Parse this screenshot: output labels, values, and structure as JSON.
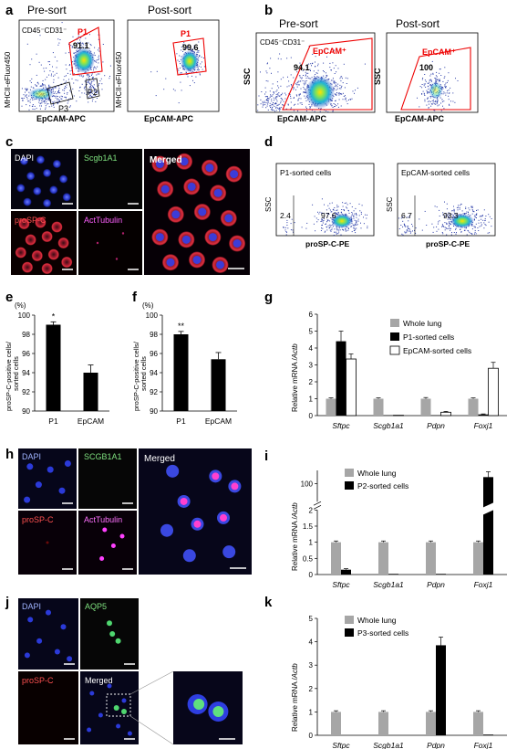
{
  "panels": {
    "a": {
      "letter": "a",
      "pre_title": "Pre-sort",
      "post_title": "Post-sort",
      "subset_label": "CD45⁻CD31⁻",
      "x_label": "EpCAM-APC",
      "y_label": "MHCII-eFluor450",
      "gate_p1": "P1",
      "gate_p2": "P2",
      "gate_p3": "P3",
      "pre_pct": "91.1",
      "post_pct": "99.6"
    },
    "b": {
      "letter": "b",
      "pre_title": "Pre-sort",
      "post_title": "Post-sort",
      "subset_label": "CD45⁻CD31⁻",
      "x_label": "EpCAM-APC",
      "y_label": "SSC",
      "gate": "EpCAM⁺",
      "pre_pct": "94.1",
      "post_pct": "100"
    },
    "c": {
      "letter": "c",
      "ch1": "DAPI",
      "ch2": "Scgb1A1",
      "ch3": "proSP-C",
      "ch4": "ActTubulin",
      "merged": "Merged"
    },
    "d": {
      "letter": "d",
      "left_title": "P1-sorted cells",
      "right_title": "EpCAM-sorted cells",
      "y_label": "SSC",
      "x_label": "proSP-C-PE",
      "left_neg": "2.4",
      "left_pos": "97.6",
      "right_neg": "6.7",
      "right_pos": "93.3"
    },
    "e": {
      "letter": "e"
    },
    "f": {
      "letter": "f"
    },
    "g": {
      "letter": "g"
    },
    "h": {
      "letter": "h",
      "ch1": "DAPI",
      "ch2": "SCGB1A1",
      "ch3": "proSP-C",
      "ch4": "ActTubulin",
      "merged": "Merged"
    },
    "i": {
      "letter": "i"
    },
    "j": {
      "letter": "j",
      "ch1": "DAPI",
      "ch2": "AQP5",
      "ch3": "proSP-C",
      "merged": "Merged"
    },
    "k": {
      "letter": "k"
    }
  },
  "chart_data": [
    {
      "id": "e",
      "type": "bar",
      "categories": [
        "P1",
        "EpCAM"
      ],
      "values": [
        99.0,
        94.0
      ],
      "errors": [
        0.3,
        0.8
      ],
      "significance": [
        "*",
        ""
      ],
      "ylabel": "proSP-C-positive cells/ sorted cells",
      "unit": "(%)",
      "ylim": [
        90,
        100
      ],
      "yticks": [
        90,
        92,
        94,
        96,
        98,
        100
      ]
    },
    {
      "id": "f",
      "type": "bar",
      "categories": [
        "P1",
        "EpCAM"
      ],
      "values": [
        98.0,
        95.4
      ],
      "errors": [
        0.3,
        0.7
      ],
      "significance": [
        "**",
        ""
      ],
      "ylabel": "proSP-C-positive cells/ sorted cells",
      "unit": "(%)",
      "ylim": [
        90,
        100
      ],
      "yticks": [
        90,
        92,
        94,
        96,
        98,
        100
      ]
    },
    {
      "id": "g",
      "type": "bar",
      "categories": [
        "Sftpc",
        "Scgb1a1",
        "Pdpn",
        "Foxj1"
      ],
      "series": [
        {
          "name": "Whole lung",
          "values": [
            1.0,
            1.0,
            1.0,
            1.0
          ],
          "errors": [
            0.05,
            0.05,
            0.07,
            0.05
          ],
          "color": "#a6a6a6"
        },
        {
          "name": "P1-sorted cells",
          "values": [
            4.4,
            0.02,
            0.02,
            0.07
          ],
          "errors": [
            0.6,
            0,
            0,
            0.03
          ],
          "color": "#000000"
        },
        {
          "name": "EpCAM-sorted cells",
          "values": [
            3.35,
            0.02,
            0.2,
            2.8
          ],
          "errors": [
            0.3,
            0,
            0.05,
            0.35
          ],
          "color": "#ffffff"
        }
      ],
      "ylabel": "Relative mRNA /Actb",
      "ylim": [
        0,
        6
      ],
      "yticks": [
        0,
        1,
        2,
        3,
        4,
        5,
        6
      ]
    },
    {
      "id": "i",
      "type": "bar",
      "categories": [
        "Sftpc",
        "Scgb1a1",
        "Pdpn",
        "Foxj1"
      ],
      "series": [
        {
          "name": "Whole lung",
          "values": [
            1.0,
            1.0,
            1.0,
            1.0
          ],
          "errors": [
            0.04,
            0.04,
            0.04,
            0.04
          ],
          "color": "#a6a6a6"
        },
        {
          "name": "P2-sorted cells",
          "values": [
            0.15,
            0.02,
            0.02,
            115
          ],
          "errors": [
            0.03,
            0,
            0,
            12
          ],
          "color": "#000000"
        }
      ],
      "ylabel": "Relative mRNA /Actb",
      "axis_break": [
        2,
        60
      ],
      "yticks": [
        0,
        0.5,
        1,
        1.5,
        2,
        100
      ]
    },
    {
      "id": "k",
      "type": "bar",
      "categories": [
        "Sftpc",
        "Scgb1a1",
        "Pdpn",
        "Foxj1"
      ],
      "series": [
        {
          "name": "Whole lung",
          "values": [
            1.0,
            1.0,
            1.0,
            1.0
          ],
          "errors": [
            0.05,
            0.05,
            0.05,
            0.05
          ],
          "color": "#a6a6a6"
        },
        {
          "name": "P3-sorted cells",
          "values": [
            0.0,
            0.0,
            3.85,
            0.03
          ],
          "errors": [
            0,
            0,
            0.35,
            0
          ],
          "color": "#000000"
        }
      ],
      "ylabel": "Relative mRNA /Actb",
      "ylim": [
        0,
        5
      ],
      "yticks": [
        0,
        1,
        2,
        3,
        4,
        5
      ]
    }
  ]
}
